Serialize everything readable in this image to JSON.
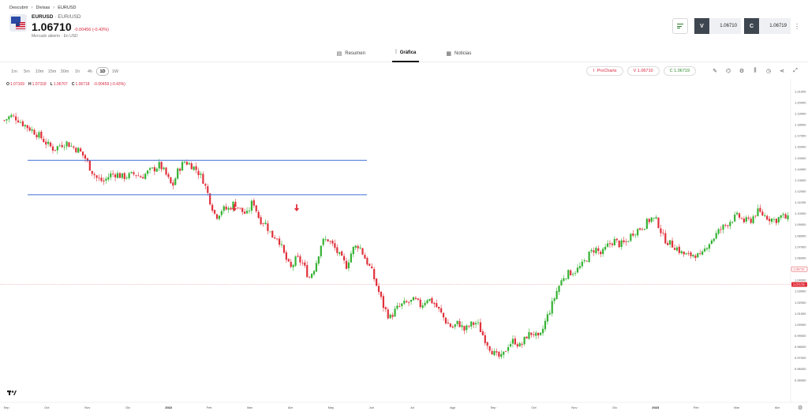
{
  "breadcrumb": [
    "Descubrir",
    "Divisas",
    "EURUSD"
  ],
  "instrument": {
    "symbol": "EURUSD",
    "pair": "EUR/USD",
    "price": "1.06710",
    "change": "-0.00456 (-0.43%)",
    "status": "Mercado abierto",
    "currency": "En USD"
  },
  "trade": {
    "sell_tag": "V",
    "sell_value": "1.06710",
    "buy_tag": "C",
    "buy_value": "1.06719"
  },
  "tabs": [
    {
      "label": "Resumen",
      "icon": "summary-icon"
    },
    {
      "label": "Gráfica",
      "icon": "chart-icon",
      "active": true
    },
    {
      "label": "Noticias",
      "icon": "news-icon"
    }
  ],
  "timeframes": [
    "1m",
    "5m",
    "10m",
    "15m",
    "30m",
    "1h",
    "4h",
    "1D",
    "1W"
  ],
  "active_timeframe": "1D",
  "toolbar": {
    "prochart_label": "ProCharts",
    "sell_label": "V 1.06710",
    "buy_label": "C 1.06719",
    "icons": [
      "draw-icon",
      "indicators-icon",
      "settings-icon",
      "compare-icon",
      "history-icon",
      "share-icon",
      "fullscreen-icon"
    ]
  },
  "ohlc": {
    "o_label": "O",
    "o": "1.07169",
    "h_label": "H",
    "h": "1.07318",
    "l_label": "L",
    "l": "1.06707",
    "c_label": "C",
    "c": "1.06718",
    "change": "-0.00459 (-0.43%)"
  },
  "colors": {
    "up": "#35b233",
    "down": "#e0313b",
    "level_line": "#3f6fd8",
    "arrow": "#e0313b"
  },
  "chart_data": {
    "type": "candlestick",
    "y_ticks": [
      "1.21000",
      "1.20000",
      "1.19000",
      "1.18000",
      "1.17000",
      "1.16000",
      "1.15000",
      "1.14000",
      "1.13000",
      "1.12000",
      "1.11000",
      "1.10000",
      "1.09000",
      "1.08000",
      "1.07000",
      "1.06000",
      "1.05000",
      "1.04000",
      "1.03000",
      "1.02000",
      "1.01000",
      "1.00000",
      "0.99000",
      "0.98000",
      "0.97000",
      "0.96000",
      "0.95000"
    ],
    "ylim": [
      0.95,
      1.21
    ],
    "current_price_label": "1.06710",
    "prev_close_label": "1.07175",
    "x_labels": [
      {
        "label": "Sep"
      },
      {
        "label": "Oct"
      },
      {
        "label": "Nov"
      },
      {
        "label": "Dic"
      },
      {
        "label": "2022",
        "bold": true
      },
      {
        "label": "Feb"
      },
      {
        "label": "Mar"
      },
      {
        "label": "Abr"
      },
      {
        "label": "May"
      },
      {
        "label": "Jun"
      },
      {
        "label": "Jul"
      },
      {
        "label": "Ago"
      },
      {
        "label": "Sep"
      },
      {
        "label": "Oct"
      },
      {
        "label": "Nov"
      },
      {
        "label": "Dic"
      },
      {
        "label": "2023",
        "bold": true
      },
      {
        "label": "Feb"
      },
      {
        "label": "Mar"
      },
      {
        "label": "Abr"
      }
    ],
    "trend_path": [
      1.184,
      1.188,
      1.186,
      1.181,
      1.177,
      1.173,
      1.168,
      1.162,
      1.158,
      1.162,
      1.164,
      1.16,
      1.157,
      1.15,
      1.139,
      1.131,
      1.129,
      1.135,
      1.136,
      1.133,
      1.134,
      1.136,
      1.133,
      1.137,
      1.14,
      1.144,
      1.135,
      1.124,
      1.14,
      1.147,
      1.144,
      1.139,
      1.13,
      1.113,
      1.097,
      1.104,
      1.104,
      1.11,
      1.103,
      1.099,
      1.112,
      1.095,
      1.091,
      1.08,
      1.079,
      1.063,
      1.05,
      1.06,
      1.055,
      1.042,
      1.053,
      1.074,
      1.077,
      1.07,
      1.061,
      1.053,
      1.068,
      1.072,
      1.06,
      1.049,
      1.033,
      1.016,
      1.006,
      1.014,
      1.018,
      1.02,
      1.022,
      1.017,
      1.024,
      1.02,
      1.012,
      1.003,
      0.997,
      1.002,
      0.995,
      1.0,
      1.002,
      0.99,
      0.98,
      0.972,
      0.97,
      0.982,
      0.986,
      0.98,
      0.99,
      0.993,
      0.986,
      1.003,
      1.017,
      1.033,
      1.044,
      1.047,
      1.049,
      1.054,
      1.063,
      1.069,
      1.063,
      1.071,
      1.076,
      1.072,
      1.074,
      1.083,
      1.086,
      1.09,
      1.096,
      1.093,
      1.078,
      1.073,
      1.07,
      1.064,
      1.062,
      1.064,
      1.06,
      1.072,
      1.078,
      1.085,
      1.09,
      1.095,
      1.098,
      1.093,
      1.094,
      1.102,
      1.099,
      1.096,
      1.094,
      1.098,
      1.095
    ],
    "levels": [
      1.148,
      1.117
    ],
    "annotations": [
      {
        "type": "arrow-down"
      },
      {
        "type": "arrow-down"
      }
    ]
  }
}
